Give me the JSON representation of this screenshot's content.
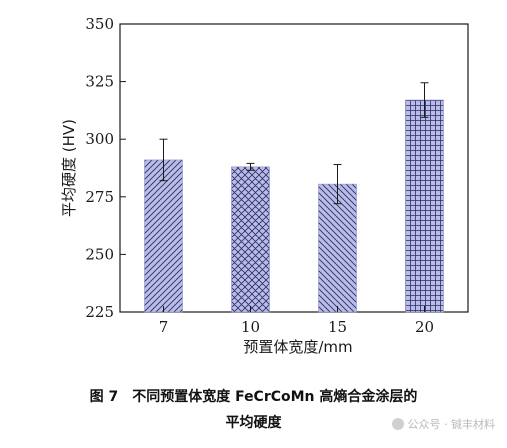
{
  "chart_data": {
    "type": "bar",
    "categories": [
      "7",
      "10",
      "15",
      "20"
    ],
    "values": [
      291,
      288,
      280.5,
      317
    ],
    "errors": [
      9,
      1.5,
      8.5,
      7.5
    ],
    "ylabel": "平均硬度 (HV)",
    "xlabel": "预置体宽度/mm",
    "ylim": [
      225,
      350
    ],
    "yticks": [
      225,
      250,
      275,
      300,
      325,
      350
    ],
    "grid": false,
    "bar_fill": "#b9bde6",
    "pattern_color": "#2b2b66",
    "patterns": [
      "diagonal",
      "crosshatch",
      "back-diagonal",
      "grid"
    ]
  },
  "caption": {
    "line1": "图 7　不同预置体宽度 FeCrCoMn 高熵合金涂层的",
    "line2": "平均硬度"
  },
  "watermark": "公众号 · 铖丰材料"
}
